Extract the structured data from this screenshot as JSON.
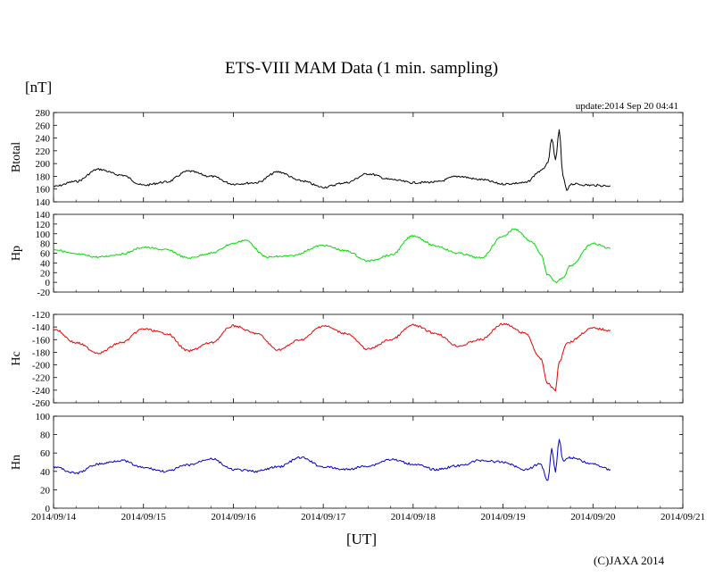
{
  "title": "ETS-VIII MAM Data (1 min. sampling)",
  "unit_label": "[nT]",
  "update_label": "update:2014 Sep 20 04:41",
  "xlabel": "[UT]",
  "copyright": "(C)JAXA 2014",
  "chart_data": {
    "type": "line",
    "x_ticks": [
      "2014/09/14",
      "2014/09/15",
      "2014/09/16",
      "2014/09/17",
      "2014/09/18",
      "2014/09/19",
      "2014/09/20",
      "2014/09/21"
    ],
    "x_start": "2014/09/14 00:00",
    "x_end": "2014/09/21 00:00",
    "data_end": "2014/09/20 04:41",
    "panels": [
      {
        "name": "Btotal",
        "color": "#000000",
        "ylim": [
          140,
          280
        ],
        "yticks": [
          140,
          160,
          180,
          200,
          220,
          240,
          260,
          280
        ],
        "points": [
          [
            "2014/09/14 00:00",
            164
          ],
          [
            "2014/09/14 06:00",
            172
          ],
          [
            "2014/09/14 12:00",
            191
          ],
          [
            "2014/09/14 18:00",
            182
          ],
          [
            "2014/09/15 00:00",
            166
          ],
          [
            "2014/09/15 06:00",
            171
          ],
          [
            "2014/09/15 12:00",
            188
          ],
          [
            "2014/09/15 18:00",
            180
          ],
          [
            "2014/09/16 00:00",
            168
          ],
          [
            "2014/09/16 06:00",
            170
          ],
          [
            "2014/09/16 12:00",
            187
          ],
          [
            "2014/09/16 18:00",
            173
          ],
          [
            "2014/09/17 00:00",
            163
          ],
          [
            "2014/09/17 06:00",
            170
          ],
          [
            "2014/09/17 12:00",
            184
          ],
          [
            "2014/09/17 18:00",
            175
          ],
          [
            "2014/09/18 00:00",
            170
          ],
          [
            "2014/09/18 06:00",
            171
          ],
          [
            "2014/09/18 12:00",
            180
          ],
          [
            "2014/09/18 18:00",
            175
          ],
          [
            "2014/09/19 00:00",
            168
          ],
          [
            "2014/09/19 06:00",
            170
          ],
          [
            "2014/09/19 10:00",
            188
          ],
          [
            "2014/09/19 12:00",
            200
          ],
          [
            "2014/09/19 13:00",
            240
          ],
          [
            "2014/09/19 14:00",
            205
          ],
          [
            "2014/09/19 15:00",
            252
          ],
          [
            "2014/09/19 16:00",
            180
          ],
          [
            "2014/09/19 17:00",
            158
          ],
          [
            "2014/09/19 18:00",
            168
          ],
          [
            "2014/09/20 00:00",
            166
          ],
          [
            "2014/09/20 04:41",
            165
          ]
        ]
      },
      {
        "name": "Hp",
        "color": "#00dd00",
        "ylim": [
          -20,
          140
        ],
        "yticks": [
          -20,
          0,
          20,
          40,
          60,
          80,
          100,
          120,
          140
        ],
        "points": [
          [
            "2014/09/14 00:00",
            68
          ],
          [
            "2014/09/14 06:00",
            58
          ],
          [
            "2014/09/14 12:00",
            52
          ],
          [
            "2014/09/14 18:00",
            58
          ],
          [
            "2014/09/15 00:00",
            72
          ],
          [
            "2014/09/15 06:00",
            67
          ],
          [
            "2014/09/15 12:00",
            50
          ],
          [
            "2014/09/15 18:00",
            60
          ],
          [
            "2014/09/16 00:00",
            80
          ],
          [
            "2014/09/16 03:00",
            87
          ],
          [
            "2014/09/16 09:00",
            52
          ],
          [
            "2014/09/16 15:00",
            54
          ],
          [
            "2014/09/17 00:00",
            76
          ],
          [
            "2014/09/17 06:00",
            65
          ],
          [
            "2014/09/17 12:00",
            44
          ],
          [
            "2014/09/17 18:00",
            56
          ],
          [
            "2014/09/18 00:00",
            96
          ],
          [
            "2014/09/18 06:00",
            75
          ],
          [
            "2014/09/18 12:00",
            60
          ],
          [
            "2014/09/18 18:00",
            50
          ],
          [
            "2014/09/19 00:00",
            95
          ],
          [
            "2014/09/19 03:00",
            110
          ],
          [
            "2014/09/19 08:00",
            82
          ],
          [
            "2014/09/19 10:00",
            58
          ],
          [
            "2014/09/19 12:00",
            15
          ],
          [
            "2014/09/19 14:00",
            0
          ],
          [
            "2014/09/19 16:00",
            10
          ],
          [
            "2014/09/19 18:00",
            35
          ],
          [
            "2014/09/20 00:00",
            80
          ],
          [
            "2014/09/20 04:41",
            70
          ]
        ]
      },
      {
        "name": "Hc",
        "color": "#ee0000",
        "ylim": [
          -260,
          -120
        ],
        "yticks": [
          -260,
          -240,
          -220,
          -200,
          -180,
          -160,
          -140,
          -120
        ],
        "points": [
          [
            "2014/09/14 00:00",
            -143
          ],
          [
            "2014/09/14 06:00",
            -165
          ],
          [
            "2014/09/14 12:00",
            -181
          ],
          [
            "2014/09/14 18:00",
            -165
          ],
          [
            "2014/09/15 00:00",
            -143
          ],
          [
            "2014/09/15 06:00",
            -150
          ],
          [
            "2014/09/15 12:00",
            -178
          ],
          [
            "2014/09/15 18:00",
            -165
          ],
          [
            "2014/09/16 00:00",
            -138
          ],
          [
            "2014/09/16 06:00",
            -150
          ],
          [
            "2014/09/16 12:00",
            -176
          ],
          [
            "2014/09/16 18:00",
            -160
          ],
          [
            "2014/09/17 00:00",
            -138
          ],
          [
            "2014/09/17 06:00",
            -150
          ],
          [
            "2014/09/17 12:00",
            -175
          ],
          [
            "2014/09/17 18:00",
            -160
          ],
          [
            "2014/09/18 00:00",
            -137
          ],
          [
            "2014/09/18 06:00",
            -150
          ],
          [
            "2014/09/18 12:00",
            -170
          ],
          [
            "2014/09/18 18:00",
            -160
          ],
          [
            "2014/09/19 00:00",
            -135
          ],
          [
            "2014/09/19 06:00",
            -150
          ],
          [
            "2014/09/19 10:00",
            -190
          ],
          [
            "2014/09/19 12:00",
            -230
          ],
          [
            "2014/09/19 14:00",
            -240
          ],
          [
            "2014/09/19 15:00",
            -195
          ],
          [
            "2014/09/19 17:00",
            -165
          ],
          [
            "2014/09/20 00:00",
            -142
          ],
          [
            "2014/09/20 04:41",
            -145
          ]
        ]
      },
      {
        "name": "Hn",
        "color": "#0000cc",
        "ylim": [
          0,
          100
        ],
        "yticks": [
          0,
          20,
          40,
          60,
          80,
          100
        ],
        "points": [
          [
            "2014/09/14 00:00",
            45
          ],
          [
            "2014/09/14 06:00",
            38
          ],
          [
            "2014/09/14 12:00",
            48
          ],
          [
            "2014/09/14 18:00",
            52
          ],
          [
            "2014/09/15 00:00",
            44
          ],
          [
            "2014/09/15 06:00",
            40
          ],
          [
            "2014/09/15 12:00",
            47
          ],
          [
            "2014/09/15 18:00",
            54
          ],
          [
            "2014/09/16 00:00",
            42
          ],
          [
            "2014/09/16 06:00",
            40
          ],
          [
            "2014/09/16 12:00",
            45
          ],
          [
            "2014/09/16 18:00",
            55
          ],
          [
            "2014/09/17 00:00",
            45
          ],
          [
            "2014/09/17 06:00",
            42
          ],
          [
            "2014/09/17 12:00",
            46
          ],
          [
            "2014/09/17 18:00",
            53
          ],
          [
            "2014/09/18 00:00",
            48
          ],
          [
            "2014/09/18 06:00",
            42
          ],
          [
            "2014/09/18 12:00",
            46
          ],
          [
            "2014/09/18 18:00",
            52
          ],
          [
            "2014/09/19 00:00",
            50
          ],
          [
            "2014/09/19 06:00",
            42
          ],
          [
            "2014/09/19 10:00",
            48
          ],
          [
            "2014/09/19 12:00",
            30
          ],
          [
            "2014/09/19 13:00",
            65
          ],
          [
            "2014/09/19 14:00",
            40
          ],
          [
            "2014/09/19 15:00",
            75
          ],
          [
            "2014/09/19 16:00",
            52
          ],
          [
            "2014/09/19 18:00",
            55
          ],
          [
            "2014/09/20 00:00",
            48
          ],
          [
            "2014/09/20 04:41",
            42
          ]
        ]
      }
    ],
    "grid": false
  }
}
